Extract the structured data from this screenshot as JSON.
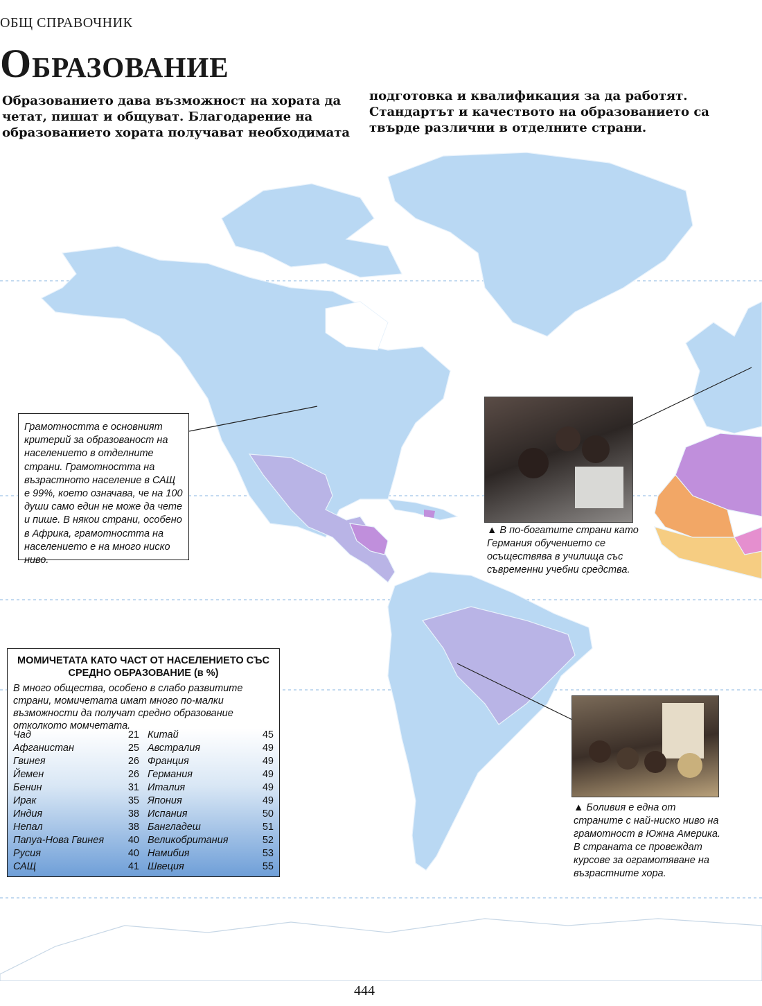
{
  "header": {
    "section_label": "ОБЩ СПРАВОЧНИК",
    "title": "Образование"
  },
  "intro": {
    "left_text": "Образованието дава възможност на хората да четат, пишат и общуват. Благодарение на образованието хората получават необходимата",
    "right_text": "подготовка и квалификация за да работят. Стандартът и качеството на образованието са твърде различни в отделните страни."
  },
  "literacy_box": {
    "text": "Грамотността е основният критерий за образованост на населението в отделните страни. Грамотността на възрастното население в САЩ е 99%, което означава, че на 100 души само един не може да чете и пише. В някои страни, особено в Африка, грамотността на населението е на много ниско ниво."
  },
  "captions": {
    "germany": "В по-богатите страни като Германия обучението се осъществява в училища със съвременни учебни средства.",
    "bolivia": "Боливия е една от страните с най-ниско ниво на грамотност в Южна Америка. В страната се провеждат курсове за ограмотяване на възрастните хора."
  },
  "stats_box": {
    "title": "МОМИЧЕТАТА КАТО ЧАСТ ОТ НАСЕЛЕНИЕТО СЪС СРЕДНО ОБРАЗОВАНИЕ (в %)",
    "intro": "В много общества, особено в слабо развитите страни, момичетата имат много по-малки възможности да получат средно образование отколкото момчетата.",
    "left_rows": [
      {
        "country": "Чад",
        "value": "21"
      },
      {
        "country": "Афганистан",
        "value": "25"
      },
      {
        "country": "Гвинея",
        "value": "26"
      },
      {
        "country": "Йемен",
        "value": "26"
      },
      {
        "country": "Бенин",
        "value": "31"
      },
      {
        "country": "Ирак",
        "value": "35"
      },
      {
        "country": "Индия",
        "value": "38"
      },
      {
        "country": "Непал",
        "value": "38"
      },
      {
        "country": "Папуа-Нова Гвинея",
        "value": "40"
      },
      {
        "country": "Русия",
        "value": "40"
      },
      {
        "country": "САЩ",
        "value": "41"
      }
    ],
    "right_rows": [
      {
        "country": "Китай",
        "value": "45"
      },
      {
        "country": "Австралия",
        "value": "49"
      },
      {
        "country": "Франция",
        "value": "49"
      },
      {
        "country": "Германия",
        "value": "49"
      },
      {
        "country": "Италия",
        "value": "49"
      },
      {
        "country": "Япония",
        "value": "49"
      },
      {
        "country": "Испания",
        "value": "50"
      },
      {
        "country": "Бангладеш",
        "value": "51"
      },
      {
        "country": "Великобритания",
        "value": "52"
      },
      {
        "country": "Намибия",
        "value": "53"
      },
      {
        "country": "Швеция",
        "value": "55"
      }
    ]
  },
  "page_number": "444",
  "colors": {
    "land_high": "#b9d8f3",
    "land_mid": "#b9b4e6",
    "land_low_violet": "#c08fdc",
    "land_low_orange": "#f2a766",
    "land_low_yellow": "#f6cd82",
    "land_pink": "#e58fcf",
    "ocean": "#ffffff",
    "gridline": "#9fc4e6"
  }
}
